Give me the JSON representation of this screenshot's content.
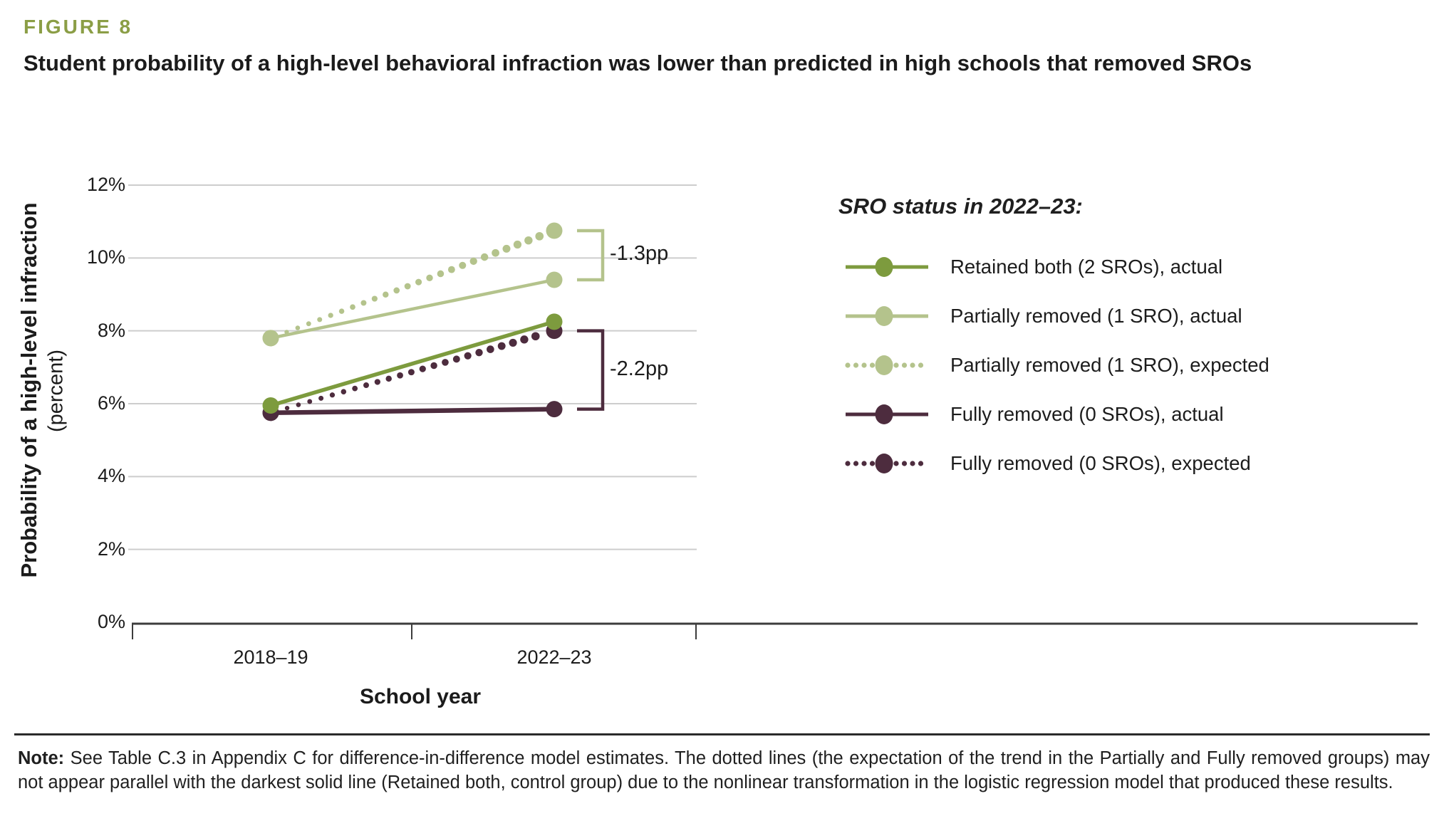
{
  "figure": {
    "label": "FIGURE 8",
    "title": "Student probability of a high-level behavioral infraction was lower than predicted in high schools that removed SROs"
  },
  "chart_data": {
    "type": "line",
    "categories": [
      "2018–19",
      "2022–23"
    ],
    "series": [
      {
        "name": "Retained both (2 SROs), actual",
        "style": "solid",
        "color": "#7d9b3e",
        "values": [
          5.95,
          8.25
        ]
      },
      {
        "name": "Partially removed (1 SRO), actual",
        "style": "solid",
        "color": "#b4c38c",
        "values": [
          7.8,
          9.4
        ]
      },
      {
        "name": "Partially removed (1 SRO), expected",
        "style": "dotted",
        "color": "#b4c38c",
        "values": [
          7.8,
          10.75
        ]
      },
      {
        "name": "Fully removed (0 SROs), actual",
        "style": "solid",
        "color": "#4d2c3e",
        "values": [
          5.75,
          5.85
        ]
      },
      {
        "name": "Fully removed (0 SROs), expected",
        "style": "dotted",
        "color": "#4d2c3e",
        "values": [
          5.75,
          8.0
        ]
      }
    ],
    "xlabel": "School year",
    "ylabel": "Probability of a high-level infraction",
    "ylabel_sub": "(percent)",
    "ylim": [
      0,
      12
    ],
    "yticks": [
      {
        "value": 0,
        "label": "0%"
      },
      {
        "value": 2,
        "label": "2%"
      },
      {
        "value": 4,
        "label": "4%"
      },
      {
        "value": 6,
        "label": "6%"
      },
      {
        "value": 8,
        "label": "8%"
      },
      {
        "value": 10,
        "label": "10%"
      },
      {
        "value": 12,
        "label": "12%"
      }
    ],
    "grid": true,
    "legend_title": "SRO status in 2022–23:",
    "legend_position": "right",
    "annotations": [
      {
        "text": "-1.3pp",
        "category": "2022–23",
        "from": 10.75,
        "to": 9.4,
        "color": "#b4c38c"
      },
      {
        "text": "-2.2pp",
        "category": "2022–23",
        "from": 8.0,
        "to": 5.85,
        "color": "#4d2c3e"
      }
    ]
  },
  "note": {
    "label": "Note:",
    "text": "See Table C.3 in Appendix C for difference-in-difference model estimates. The dotted lines (the expectation of the trend in the Partially and Fully removed groups) may not appear parallel with the darkest solid line (Retained both, control group) due to the nonlinear transformation in the logistic regression model that produced these results."
  },
  "colors": {
    "accent_olive": "#8b9e46",
    "dark_olive": "#7d9b3e",
    "light_olive": "#b4c38c",
    "plum": "#4d2c3e",
    "gridline": "#cdcdcd",
    "axis": "#3c3c3c",
    "text": "#1c1c1c"
  }
}
